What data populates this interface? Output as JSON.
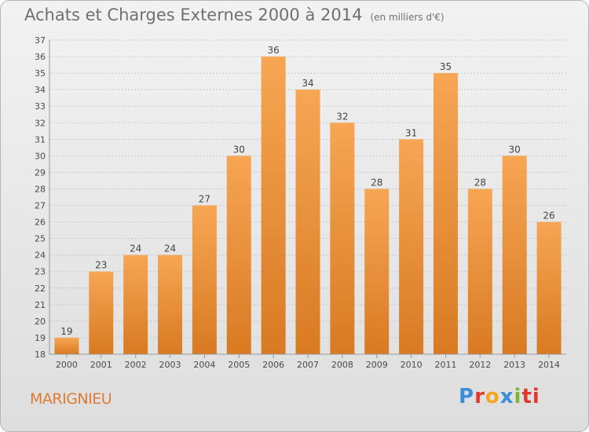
{
  "header": {
    "title": "Achats et Charges Externes 2000 à 2014",
    "unit": "(en milliers d'€)"
  },
  "footer": {
    "location": "MARIGNIEU",
    "brand": "Proxiti",
    "brand_letters": [
      "P",
      "r",
      "o",
      "x",
      "i",
      "ti"
    ]
  },
  "colors": {
    "bar_top": "#f7a654",
    "bar_bottom": "#d87a22",
    "grid": "#c8c8c8"
  },
  "chart_data": {
    "type": "bar",
    "title": "Achats et Charges Externes 2000 à 2014",
    "subtitle": "(en milliers d'€)",
    "categories": [
      "2000",
      "2001",
      "2002",
      "2003",
      "2004",
      "2005",
      "2006",
      "2007",
      "2008",
      "2009",
      "2010",
      "2011",
      "2012",
      "2013",
      "2014"
    ],
    "values": [
      19,
      23,
      24,
      24,
      27,
      30,
      36,
      34,
      32,
      28,
      31,
      35,
      28,
      30,
      26
    ],
    "ylim": [
      18,
      37
    ],
    "yticks": [
      18,
      19,
      20,
      21,
      22,
      23,
      24,
      25,
      26,
      27,
      28,
      29,
      30,
      31,
      32,
      33,
      34,
      35,
      36,
      37
    ],
    "grid": true,
    "xlabel": "",
    "ylabel": ""
  }
}
